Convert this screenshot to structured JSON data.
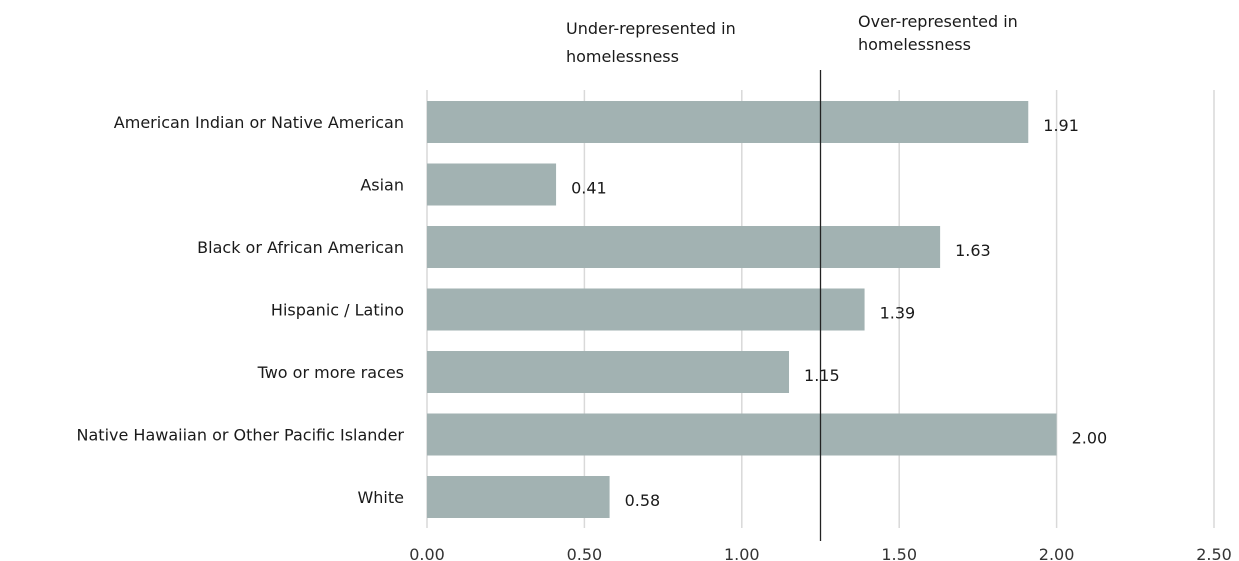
{
  "chart_data": {
    "type": "bar",
    "orientation": "horizontal",
    "categories": [
      "American Indian or Native American",
      "Asian",
      "Black or African American",
      "Hispanic / Latino",
      "Two or more races",
      "Native Hawaiian or Other Pacific Islander",
      "White"
    ],
    "values": [
      1.91,
      0.41,
      1.63,
      1.39,
      1.15,
      2.0,
      0.58
    ],
    "data_labels": [
      "1.91",
      "0.41",
      "1.63",
      "1.39",
      "1.15",
      "2.00",
      "0.58"
    ],
    "xlim": [
      0,
      2.5
    ],
    "xticks": [
      "0.00",
      "0.50",
      "1.00",
      "1.50",
      "2.00",
      "2.50"
    ],
    "grid": "vertical",
    "reference_line_value": 1.25,
    "annotations": {
      "left_line1": "Under-represented in",
      "left_line2": "homelessness",
      "right_line1": "Over-represented in",
      "right_line2": "homelessness"
    },
    "title": "",
    "xlabel": "",
    "ylabel": "",
    "colors": {
      "bar": "#a2b2b2",
      "grid": "#d9d9d9",
      "reference_line": "#222222"
    }
  }
}
